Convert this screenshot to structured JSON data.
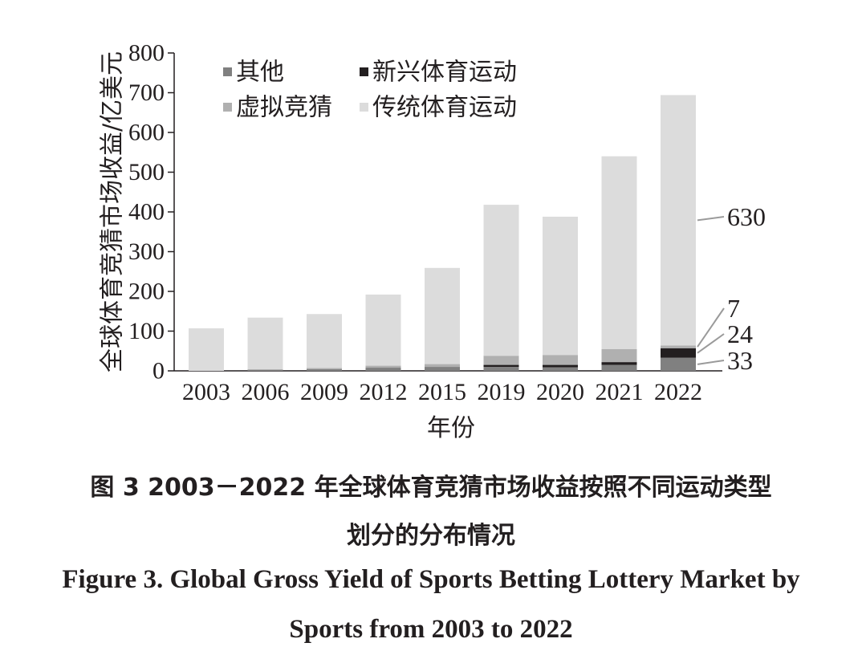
{
  "chart_data": {
    "type": "bar",
    "stacked": true,
    "categories": [
      "2003",
      "2006",
      "2009",
      "2012",
      "2015",
      "2019",
      "2020",
      "2021",
      "2022"
    ],
    "series": [
      {
        "name": "其他",
        "color": "#808080",
        "values": [
          0,
          2,
          4,
          8,
          10,
          10,
          9,
          15,
          33
        ]
      },
      {
        "name": "新兴体育运动",
        "color": "#231f20",
        "values": [
          0,
          0,
          0,
          0,
          0,
          5,
          6,
          7,
          24
        ]
      },
      {
        "name": "虚拟竞猜",
        "color": "#b0b0b0",
        "values": [
          0,
          2,
          3,
          5,
          7,
          23,
          25,
          33,
          7
        ]
      },
      {
        "name": "传统体育运动",
        "color": "#dcdcdc",
        "values": [
          107,
          130,
          136,
          179,
          242,
          380,
          348,
          485,
          630
        ]
      }
    ],
    "xlabel": "年份",
    "ylabel": "全球体育竞猜市场收益/亿美元",
    "ylim": [
      0,
      800
    ],
    "yticks": [
      "0",
      "100",
      "200",
      "300",
      "400",
      "500",
      "600",
      "700",
      "800"
    ],
    "grid": false,
    "legend_position": "top-left",
    "annotations": [
      "630",
      "7",
      "24",
      "33"
    ]
  },
  "caption": {
    "cn_line1": "图 3   2003－2022 年全球体育竞猜市场收益按照不同运动类型",
    "cn_line2": "划分的分布情况",
    "en_line1": "Figure 3.    Global Gross Yield of Sports Betting Lottery Market by",
    "en_line2": "Sports from 2003 to 2022"
  }
}
